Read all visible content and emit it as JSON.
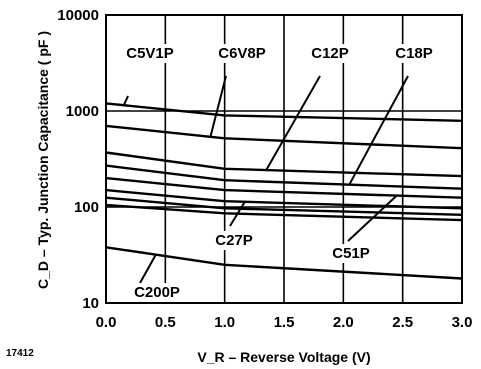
{
  "chart_data": {
    "type": "line",
    "title": "",
    "xlabel": "V_R – Reverse Voltage (V)",
    "ylabel": "C_D – Typ. Junction Capacitance ( pF )",
    "figure_id": "17412",
    "x_scale": "linear",
    "y_scale": "log",
    "xlim": [
      0,
      3.0
    ],
    "ylim": [
      10,
      10000
    ],
    "x_ticks": [
      "0.0",
      "0.5",
      "1.0",
      "1.5",
      "2.0",
      "2.5",
      "3.0"
    ],
    "y_ticks": [
      "10",
      "100",
      "1000",
      "10000"
    ],
    "grid": true,
    "x": [
      0.0,
      1.0,
      3.0
    ],
    "series": [
      {
        "values": [
          1200,
          900,
          790
        ]
      },
      {
        "values": [
          700,
          520,
          410
        ]
      },
      {
        "values": [
          370,
          250,
          210
        ]
      },
      {
        "values": [
          270,
          190,
          155
        ]
      },
      {
        "values": [
          200,
          150,
          125
        ]
      },
      {
        "values": [
          150,
          115,
          97
        ]
      },
      {
        "values": [
          125,
          97,
          83
        ]
      },
      {
        "values": [
          105,
          86,
          73
        ]
      },
      {
        "values": [
          38,
          25,
          18
        ]
      }
    ],
    "annotations": [
      {
        "text": "C5V1P",
        "series_index": 0
      },
      {
        "text": "C6V8P",
        "series_index": 1
      },
      {
        "text": "C12P",
        "series_index": 2
      },
      {
        "text": "C18P",
        "series_index": 3
      },
      {
        "text": "C27P",
        "series_index": 5
      },
      {
        "text": "C51P",
        "series_index": 4
      },
      {
        "text": "C200P",
        "series_index": 8
      }
    ]
  }
}
